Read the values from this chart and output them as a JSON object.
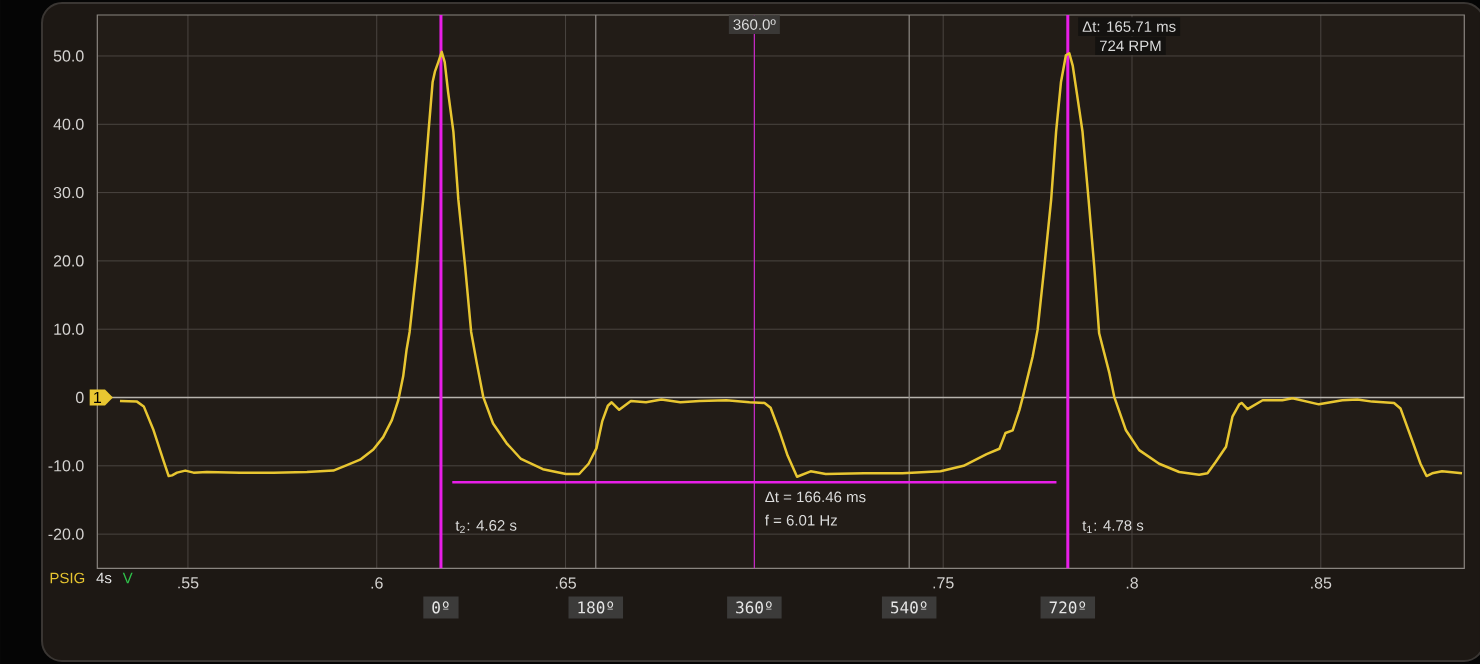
{
  "chart_data": {
    "type": "line",
    "x": [
      0.532,
      0.5365,
      0.5383,
      0.5409,
      0.5435,
      0.5449,
      0.5458,
      0.5471,
      0.5493,
      0.5515,
      0.555,
      0.5638,
      0.5727,
      0.5815,
      0.5885,
      0.5921,
      0.5956,
      0.5991,
      0.6017,
      0.604,
      0.6057,
      0.607,
      0.6079,
      0.6087,
      0.6106,
      0.6123,
      0.6137,
      0.6148,
      0.6154,
      0.6163,
      0.6172,
      0.618,
      0.6189,
      0.6203,
      0.6216,
      0.6234,
      0.625,
      0.6265,
      0.6282,
      0.6308,
      0.6344,
      0.6382,
      0.644,
      0.6501,
      0.6536,
      0.6561,
      0.6582,
      0.6597,
      0.6612,
      0.6622,
      0.6642,
      0.6673,
      0.6713,
      0.6754,
      0.6804,
      0.6855,
      0.6926,
      0.6987,
      0.7027,
      0.7043,
      0.7068,
      0.7088,
      0.7113,
      0.7149,
      0.7189,
      0.7291,
      0.7392,
      0.7493,
      0.7554,
      0.7615,
      0.7649,
      0.7665,
      0.7684,
      0.7702,
      0.7711,
      0.7737,
      0.775,
      0.7768,
      0.7786,
      0.7799,
      0.7812,
      0.7825,
      0.7834,
      0.7843,
      0.7856,
      0.7869,
      0.7885,
      0.79,
      0.7913,
      0.794,
      0.7953,
      0.7984,
      0.8019,
      0.8072,
      0.8125,
      0.8178,
      0.82,
      0.8222,
      0.8249,
      0.8266,
      0.8284,
      0.8291,
      0.8306,
      0.8346,
      0.8398,
      0.8425,
      0.8495,
      0.8557,
      0.8597,
      0.8636,
      0.8694,
      0.8711,
      0.8742,
      0.8764,
      0.878,
      0.8795,
      0.8821,
      0.8874
    ],
    "series": [
      {
        "color": "#e8c631",
        "values": [
          -0.5,
          -0.6,
          -1.3,
          -4.8,
          -9.2,
          -11.5,
          -11.4,
          -11.0,
          -10.7,
          -11.0,
          -10.9,
          -11.0,
          -11.0,
          -10.9,
          -10.7,
          -9.9,
          -9.1,
          -7.6,
          -5.8,
          -3.3,
          -0.4,
          3.1,
          7.0,
          9.6,
          19.2,
          29.0,
          38.9,
          46.2,
          47.7,
          49.1,
          50.6,
          49.1,
          44.7,
          38.9,
          29.0,
          19.2,
          9.6,
          5.0,
          0.1,
          -3.8,
          -6.7,
          -9.0,
          -10.5,
          -11.2,
          -11.2,
          -9.7,
          -7.4,
          -3.5,
          -1.2,
          -0.7,
          -1.8,
          -0.5,
          -0.7,
          -0.3,
          -0.7,
          -0.5,
          -0.4,
          -0.7,
          -0.8,
          -1.5,
          -5.2,
          -8.5,
          -11.6,
          -10.8,
          -11.2,
          -11.1,
          -11.1,
          -10.8,
          -10.0,
          -8.3,
          -7.5,
          -5.2,
          -4.8,
          -1.8,
          0.1,
          6.0,
          9.9,
          19.2,
          29.0,
          38.9,
          46.2,
          50.1,
          50.4,
          48.6,
          43.8,
          38.9,
          29.0,
          19.2,
          9.4,
          3.6,
          0.1,
          -4.8,
          -7.7,
          -9.7,
          -10.9,
          -11.3,
          -11.1,
          -9.4,
          -7.2,
          -2.8,
          -1.0,
          -0.8,
          -1.7,
          -0.4,
          -0.4,
          -0.1,
          -1.0,
          -0.4,
          -0.3,
          -0.6,
          -0.8,
          -1.6,
          -6.3,
          -9.7,
          -11.5,
          -11.1,
          -10.8,
          -11.1
        ]
      },
      {
        "name": "Δt = 166.46 ms",
        "color": "#e81ee8",
        "x": [
          0.62,
          0.78
        ],
        "values": [
          -12.4,
          -12.4
        ]
      }
    ],
    "xlim": [
      0.526,
      0.888
    ],
    "ylim": [
      -25,
      56
    ],
    "xlabel": "4s",
    "xticks": [
      {
        "value": 0.55,
        "label": ".55"
      },
      {
        "value": 0.6,
        "label": ".6"
      },
      {
        "value": 0.65,
        "label": ".65"
      },
      {
        "value": 0.7,
        "label": null
      },
      {
        "value": 0.75,
        "label": ".75"
      },
      {
        "value": 0.8,
        "label": ".8"
      },
      {
        "value": 0.85,
        "label": ".85"
      }
    ],
    "yticks": [
      {
        "value": -20,
        "label": "-20.0"
      },
      {
        "value": -10,
        "label": "-10.0"
      },
      0,
      {
        "value": 10,
        "label": "10.0"
      },
      {
        "value": 20,
        "label": "20.0"
      },
      {
        "value": 30,
        "label": "30.0"
      },
      {
        "value": 40,
        "label": "40.0"
      },
      {
        "value": 50,
        "label": "50.0"
      }
    ],
    "grid": true,
    "ref_lines": [
      {
        "axis": "y",
        "value": 0,
        "color": "#b8b4ae"
      },
      {
        "axis": "x",
        "value": 0.617,
        "color": "#e81ee8"
      },
      {
        "axis": "x",
        "value": 0.658,
        "color": "#8e8a86"
      },
      {
        "axis": "x",
        "value": 0.7,
        "color": "#c828c8"
      },
      {
        "axis": "x",
        "value": 0.741,
        "color": "#8e8a86"
      },
      {
        "axis": "x",
        "value": 0.783,
        "color": "#e81ee8"
      }
    ],
    "annotations": [
      {
        "text": "360.0º",
        "x": 0.7,
        "y": 54.6
      },
      {
        "text": "Δt: 165.71 ms",
        "x": 0.783,
        "y": 54.3
      },
      {
        "text": "724 RPM",
        "x": 0.783,
        "y": 51.5
      },
      {
        "text": "f = 6.01 Hz",
        "x": 0.7,
        "y": -16.5
      },
      {
        "text": "t$_{2}$: 4.62 s",
        "x": 0.617,
        "y": -18.9
      },
      {
        "text": "t$_{1}$: 4.78 s",
        "x": 0.783,
        "y": -18.9
      },
      {
        "text": "0º",
        "x": 0.617,
        "y": -25
      },
      {
        "text": "180º",
        "x": 0.658,
        "y": -25
      },
      {
        "text": "360º",
        "x": 0.7,
        "y": -25
      },
      {
        "text": "540º",
        "x": 0.741,
        "y": -25
      },
      {
        "text": "720º",
        "x": 0.783,
        "y": -25
      },
      {
        "text": "1",
        "x": 0.526,
        "y": 0
      },
      "PSIG",
      "V"
    ]
  }
}
